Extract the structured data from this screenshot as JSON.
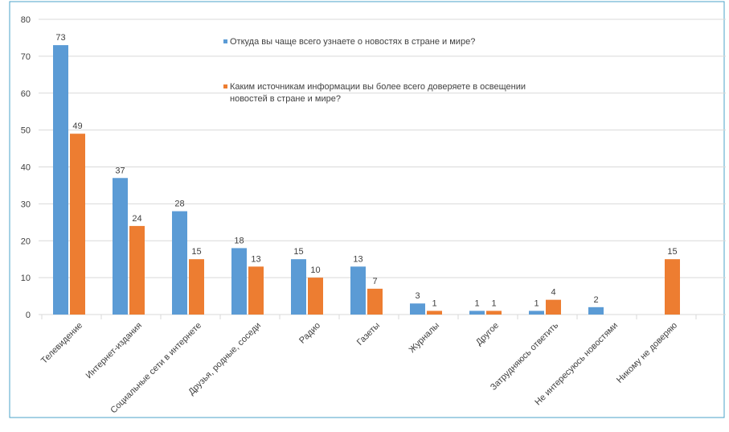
{
  "chart_data": {
    "type": "bar",
    "categories": [
      "Телевидение",
      "Интернет-издания",
      "Социальные сети в интернете",
      "Друзья, родные, соседи",
      "Радио",
      "Газеты",
      "Журналы",
      "Другое",
      "Затрудняюсь ответить",
      "Не интересуюсь новостями",
      "Никому не доверяю"
    ],
    "series": [
      {
        "name": "Откуда вы чаще всего узнаете о новостях в стране и мире?",
        "values": [
          73,
          37,
          28,
          18,
          15,
          13,
          3,
          1,
          1,
          2,
          null
        ],
        "color": "#5B9BD5"
      },
      {
        "name": "Каким источникам информации вы более всего доверяете в освещении новостей в стране и мире?",
        "values": [
          49,
          24,
          15,
          13,
          10,
          7,
          1,
          1,
          4,
          null,
          15
        ],
        "color": "#ED7D31"
      }
    ],
    "ylim": [
      0,
      80
    ],
    "yticks": [
      0,
      10,
      20,
      30,
      40,
      50,
      60,
      70,
      80
    ],
    "grid": true,
    "legend_position": "top-center",
    "legend_lines": [
      [
        "Откуда вы чаще всего узнаете о новостях в стране и мире?"
      ],
      [
        "Каким источникам информации вы более всего доверяете в освещении",
        "новостей в стране и мире?"
      ]
    ],
    "frame_color": "#4BA3C8",
    "grid_color": "#D9D9D9"
  }
}
